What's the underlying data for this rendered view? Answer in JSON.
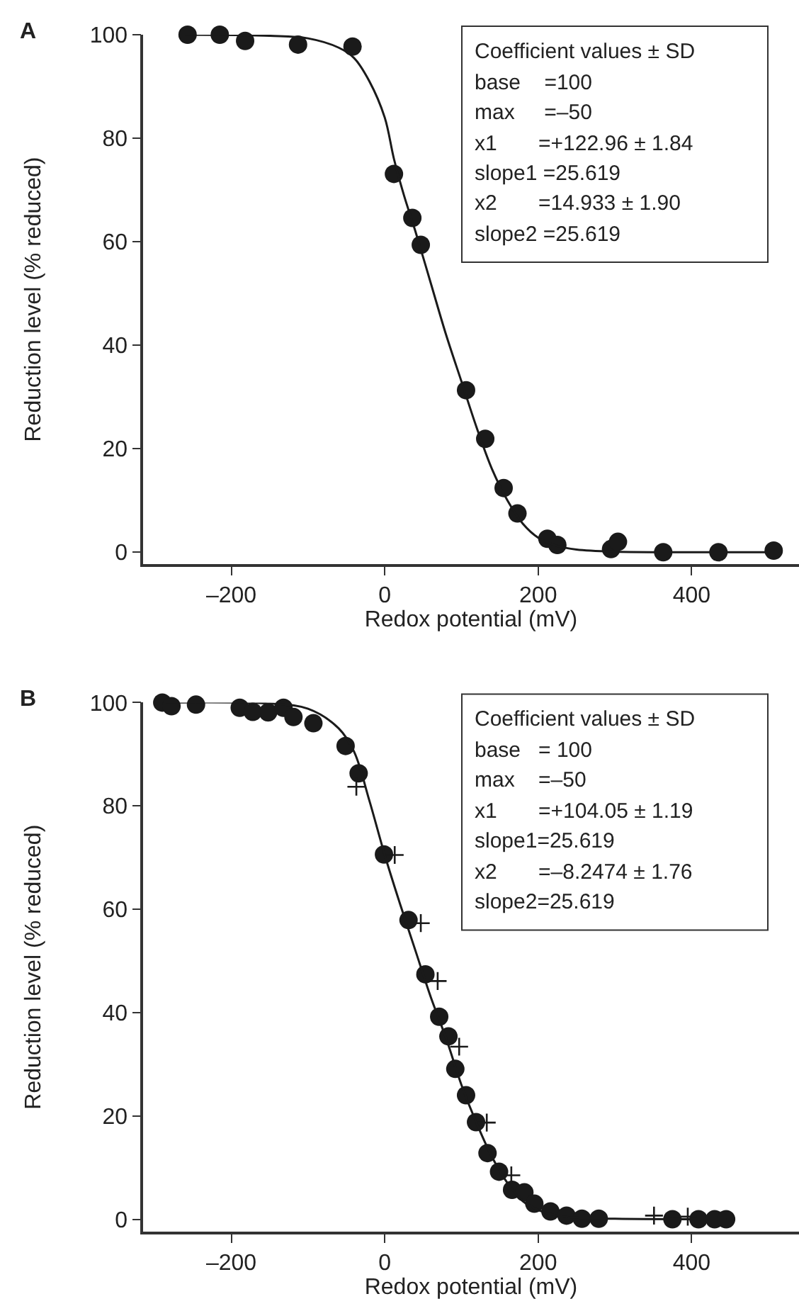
{
  "chart_data": [
    {
      "type": "scatter",
      "title": "A",
      "xlabel": "Redox potential (mV)",
      "ylabel": "Reduction level (% reduced)",
      "xlim": [
        -315,
        540
      ],
      "ylim": [
        -2.3,
        100
      ],
      "xticks": [
        {
          "value": -200,
          "label": "–200"
        },
        0,
        200,
        400
      ],
      "yticks": [
        0,
        20,
        40,
        60,
        80,
        100
      ],
      "grid": false,
      "annotations": [
        "Coefficient values ± SD",
        "base    =100",
        "max     =–50",
        "x1       =+122.96 ± 1.84",
        "slope1 =25.619",
        "x2       =14.933 ± 1.90",
        "slope2 =25.619"
      ],
      "series": [
        {
          "type": "scatter",
          "marker": "circle",
          "color": "#1a1a1a",
          "x": [
            -257,
            -215,
            -182,
            -113,
            -42,
            12,
            36,
            47,
            106,
            131,
            155,
            173,
            212,
            225,
            295,
            304,
            363,
            435,
            507
          ],
          "values": [
            100,
            100,
            98.8,
            98.1,
            97.7,
            73.1,
            64.6,
            59.4,
            31.3,
            21.9,
            12.4,
            7.5,
            2.6,
            1.4,
            0.6,
            2.0,
            0,
            0,
            0.3
          ]
        },
        {
          "type": "line",
          "line_style": "solid",
          "color": "#1a1a1a",
          "x": [
            -260,
            -150,
            -100,
            -60,
            -40,
            -20,
            0,
            12,
            25,
            40,
            60,
            80,
            100,
            120,
            140,
            160,
            180,
            200,
            225,
            250,
            300,
            400,
            510
          ],
          "values": [
            100,
            99.8,
            99.3,
            97.5,
            95.5,
            91,
            84,
            76,
            69,
            62,
            52,
            42,
            33,
            24,
            16,
            10,
            5.5,
            2.8,
            1.2,
            0.5,
            0.1,
            0,
            0
          ]
        }
      ]
    },
    {
      "type": "scatter",
      "title": "B",
      "xlabel": "Redox potential (mV)",
      "ylabel": "Reduction level (% reduced)",
      "xlim": [
        -315,
        540
      ],
      "ylim": [
        -2.4,
        100
      ],
      "xticks": [
        {
          "value": -200,
          "label": "–200"
        },
        0,
        200,
        400
      ],
      "yticks": [
        0,
        20,
        40,
        60,
        80,
        100
      ],
      "grid": false,
      "annotations": [
        "Coefficient values ± SD",
        "base   = 100",
        "max    =–50",
        "x1       =+104.05 ± 1.19",
        "slope1=25.619",
        "x2       =–8.2474 ± 1.76",
        "slope2=25.619"
      ],
      "series": [
        {
          "type": "scatter",
          "marker": "circle",
          "color": "#1a1a1a",
          "x": [
            -290,
            -278,
            -246,
            -189,
            -172,
            -152,
            -132,
            -119,
            -93,
            -51,
            -34,
            -1,
            31,
            53,
            71,
            83,
            92,
            106,
            119,
            134,
            149,
            166,
            182,
            195,
            216,
            237,
            257,
            279,
            375,
            409,
            430,
            445
          ],
          "values": [
            100,
            99.3,
            99.6,
            99.0,
            98.2,
            98.1,
            99.0,
            97.2,
            96.0,
            91.6,
            86.3,
            70.6,
            57.9,
            47.4,
            39.2,
            35.4,
            29.1,
            24.0,
            18.8,
            12.8,
            9.2,
            5.7,
            5.2,
            3.0,
            1.5,
            0.7,
            0.1,
            0.1,
            0,
            0,
            0,
            0
          ]
        },
        {
          "type": "scatter",
          "marker": "cross",
          "color": "#1a1a1a",
          "x": [
            -37,
            13,
            47,
            69,
            97,
            133,
            165,
            351,
            395
          ],
          "values": [
            83.7,
            70.5,
            57.3,
            46.1,
            33.4,
            18.7,
            8.5,
            0.7,
            0.5
          ]
        },
        {
          "type": "line",
          "line_style": "solid",
          "color": "#1a1a1a",
          "x": [
            -290,
            -150,
            -100,
            -60,
            -40,
            -20,
            0,
            20,
            40,
            60,
            80,
            100,
            120,
            140,
            160,
            180,
            200,
            225,
            250,
            300,
            445
          ],
          "values": [
            100,
            99.8,
            98.8,
            95,
            90.5,
            81,
            70.5,
            61,
            52,
            43,
            35,
            26,
            18.5,
            12,
            7,
            3.5,
            1.8,
            0.7,
            0.3,
            0.1,
            0
          ]
        }
      ]
    }
  ]
}
